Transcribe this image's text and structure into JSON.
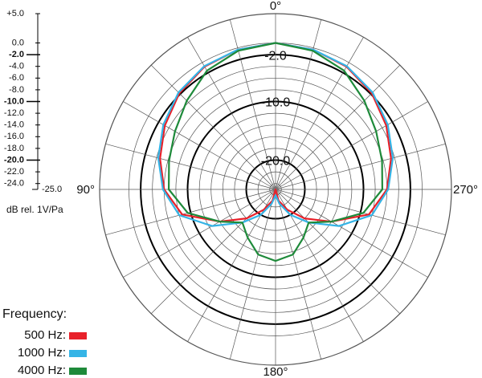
{
  "chart_data": {
    "type": "polar",
    "rlim": [
      -25,
      5
    ],
    "rticks": [
      {
        "value": 5,
        "label": "+5.0"
      },
      {
        "value": 0,
        "label": "0.0"
      },
      {
        "value": -2,
        "label": "-2.0"
      },
      {
        "value": -4,
        "label": "-4.0"
      },
      {
        "value": -6,
        "label": "-6.0"
      },
      {
        "value": -8,
        "label": "-8.0"
      },
      {
        "value": -10,
        "label": "-10.0"
      },
      {
        "value": -12,
        "label": "-12.0"
      },
      {
        "value": -14,
        "label": "-14.0"
      },
      {
        "value": -16,
        "label": "-16.0"
      },
      {
        "value": -18,
        "label": "-18.0"
      },
      {
        "value": -20,
        "label": "-20.0"
      },
      {
        "value": -22,
        "label": "-22.0"
      },
      {
        "value": -24,
        "label": "-24.0"
      },
      {
        "value": -25,
        "label": "-25.0"
      }
    ],
    "bold_rings": [
      -2,
      -10,
      -20
    ],
    "r_label": "dB rel. 1V/Pa",
    "theta_labels": [
      {
        "value": 0,
        "label": "0°"
      },
      {
        "value": 90,
        "label": "90°"
      },
      {
        "value": 180,
        "label": "180°"
      },
      {
        "value": 270,
        "label": "270°"
      }
    ],
    "theta": [
      0,
      15,
      30,
      45,
      60,
      75,
      90,
      105,
      120,
      135,
      150,
      165,
      180,
      195,
      210,
      225,
      240,
      255,
      270,
      285,
      300,
      315,
      330,
      345
    ],
    "legend_title": "Frequency:",
    "series": [
      {
        "name": "500 Hz:",
        "color": "#e8212a",
        "values": [
          0,
          -0.3,
          -0.8,
          -1.8,
          -3.2,
          -4.6,
          -6,
          -8.5,
          -14,
          -18,
          -21,
          -23,
          -25,
          -23,
          -21,
          -18,
          -14,
          -8.5,
          -6,
          -4.6,
          -3.2,
          -1.8,
          -0.8,
          -0.3
        ]
      },
      {
        "name": "1000 Hz:",
        "color": "#35b4e6",
        "values": [
          0,
          -0.3,
          -0.7,
          -1.6,
          -2.9,
          -4.3,
          -5.8,
          -8,
          -12.5,
          -17,
          -20,
          -22.5,
          -24,
          -22.5,
          -20,
          -17,
          -12.5,
          -8,
          -5.8,
          -4.3,
          -2.9,
          -1.6,
          -0.7,
          -0.3
        ]
      },
      {
        "name": "4000 Hz:",
        "color": "#1e8a3a",
        "values": [
          0,
          -0.5,
          -1.6,
          -3.6,
          -5.2,
          -6.2,
          -6.8,
          -9.5,
          -14,
          -17,
          -15.5,
          -13.5,
          -12.8,
          -13.5,
          -15.5,
          -17,
          -14,
          -9.5,
          -6.8,
          -6.2,
          -5.2,
          -3.6,
          -1.6,
          -0.5
        ]
      }
    ]
  }
}
